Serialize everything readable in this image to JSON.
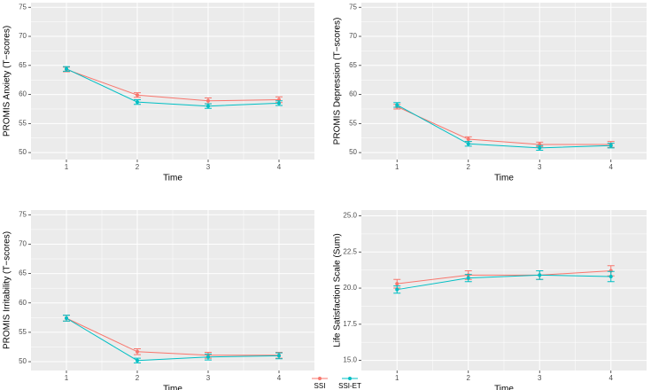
{
  "chart_data": [
    {
      "type": "line",
      "xlabel": "Time",
      "ylabel": "PROMIS Anxiety (T−scores)",
      "x": [
        1,
        2,
        3,
        4
      ],
      "xlim": [
        0.5,
        4.5
      ],
      "xticks": [
        1,
        2,
        3,
        4
      ],
      "ylim": [
        48.8,
        75.8
      ],
      "yticks": [
        50,
        55,
        60,
        65,
        70,
        75
      ],
      "grid": true,
      "legend": "bottom",
      "series": [
        {
          "name": "SSI",
          "color": "#F8766D",
          "values": [
            64.3,
            59.9,
            58.9,
            59.1
          ],
          "errors": [
            0.4,
            0.4,
            0.5,
            0.5
          ]
        },
        {
          "name": "SSI-ET",
          "color": "#00BFC4",
          "values": [
            64.4,
            58.7,
            58.0,
            58.5
          ],
          "errors": [
            0.4,
            0.4,
            0.4,
            0.4
          ]
        }
      ]
    },
    {
      "type": "line",
      "xlabel": "Time",
      "ylabel": "PROMIS Depression (T−scores)",
      "x": [
        1,
        2,
        3,
        4
      ],
      "xlim": [
        0.5,
        4.5
      ],
      "xticks": [
        1,
        2,
        3,
        4
      ],
      "ylim": [
        48.8,
        75.8
      ],
      "yticks": [
        50,
        55,
        60,
        65,
        70,
        75
      ],
      "grid": true,
      "series": [
        {
          "name": "SSI",
          "color": "#F8766D",
          "values": [
            57.9,
            52.3,
            51.4,
            51.4
          ],
          "errors": [
            0.4,
            0.4,
            0.4,
            0.5
          ]
        },
        {
          "name": "SSI-ET",
          "color": "#00BFC4",
          "values": [
            58.2,
            51.5,
            50.8,
            51.2
          ],
          "errors": [
            0.4,
            0.4,
            0.4,
            0.4
          ]
        }
      ]
    },
    {
      "type": "line",
      "xlabel": "Time",
      "ylabel": "PROMIS Irritability (T−scores)",
      "x": [
        1,
        2,
        3,
        4
      ],
      "xlim": [
        0.5,
        4.5
      ],
      "xticks": [
        1,
        2,
        3,
        4
      ],
      "ylim": [
        48.5,
        75.8
      ],
      "yticks": [
        50,
        55,
        60,
        65,
        70,
        75
      ],
      "grid": true,
      "series": [
        {
          "name": "SSI",
          "color": "#F8766D",
          "values": [
            57.4,
            51.7,
            51.1,
            51.1
          ],
          "errors": [
            0.5,
            0.5,
            0.5,
            0.5
          ]
        },
        {
          "name": "SSI-ET",
          "color": "#00BFC4",
          "values": [
            57.4,
            50.2,
            50.8,
            51.0
          ],
          "errors": [
            0.5,
            0.4,
            0.5,
            0.5
          ]
        }
      ]
    },
    {
      "type": "line",
      "xlabel": "Time",
      "ylabel": "Life Satisfaction Scale (Sum)",
      "x": [
        1,
        2,
        3,
        4
      ],
      "xlim": [
        0.5,
        4.5
      ],
      "xticks": [
        1,
        2,
        3,
        4
      ],
      "ylim": [
        14.3,
        25.4
      ],
      "yticks": [
        {
          "value": 15,
          "label": "15.0"
        },
        17.5,
        {
          "value": 20,
          "label": "20.0"
        },
        22.5,
        {
          "value": 25,
          "label": "25.0"
        }
      ],
      "grid": true,
      "series": [
        {
          "name": "SSI",
          "color": "#F8766D",
          "values": [
            20.3,
            20.9,
            20.9,
            21.2
          ],
          "errors": [
            0.3,
            0.3,
            0.3,
            0.35
          ]
        },
        {
          "name": "SSI-ET",
          "color": "#00BFC4",
          "values": [
            19.9,
            20.7,
            20.9,
            20.8
          ],
          "errors": [
            0.25,
            0.25,
            0.3,
            0.35
          ]
        }
      ]
    }
  ]
}
